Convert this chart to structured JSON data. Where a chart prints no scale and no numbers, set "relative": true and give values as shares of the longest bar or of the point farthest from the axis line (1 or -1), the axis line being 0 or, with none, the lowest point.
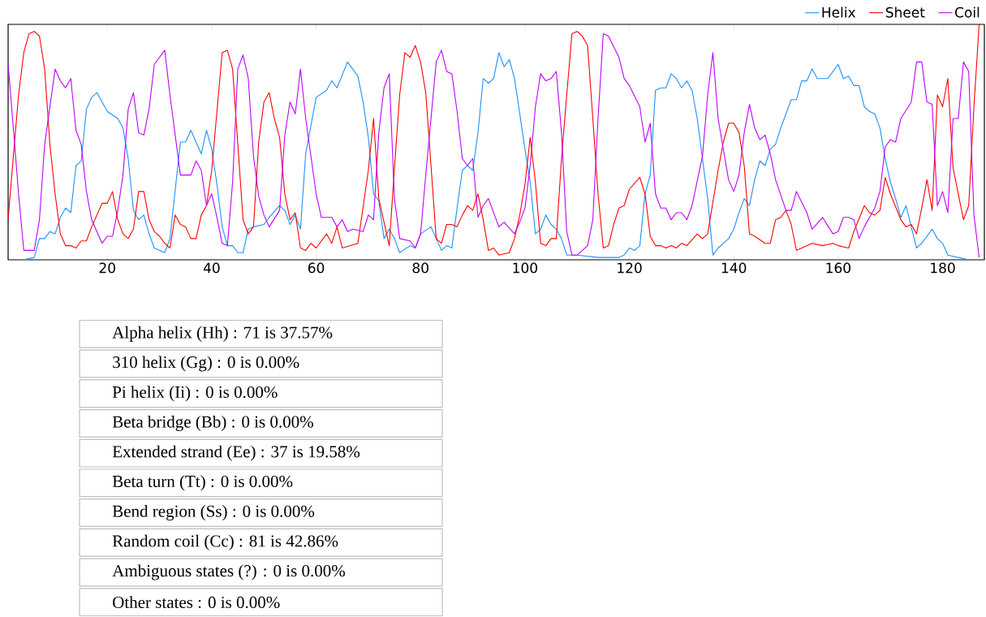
{
  "chart_data": {
    "type": "line",
    "relative": true,
    "xlim": [
      1,
      188
    ],
    "xticks": [
      20,
      40,
      60,
      80,
      100,
      120,
      140,
      160,
      180
    ],
    "legend": "top right",
    "series": [
      {
        "name": "Helix",
        "color": "#1e90ff",
        "x": [
          4,
          6,
          7,
          8,
          9,
          10,
          11,
          12,
          13,
          14,
          15,
          16,
          17,
          18,
          20,
          22,
          23,
          24,
          25,
          26,
          27,
          28,
          29,
          31,
          32,
          34,
          35,
          36,
          38,
          39,
          40,
          41,
          42,
          43,
          44,
          45,
          46,
          47,
          48,
          50,
          51,
          53,
          54,
          55,
          56,
          57,
          58,
          60,
          62,
          63,
          64,
          66,
          67,
          68,
          69,
          70,
          71,
          72,
          73,
          74,
          75,
          76,
          78,
          79,
          80,
          82,
          83,
          84,
          85,
          86,
          87,
          88,
          89,
          90,
          91,
          92,
          93,
          94,
          95,
          96,
          97,
          98,
          99,
          100,
          101,
          102,
          103,
          104,
          105,
          106,
          107,
          108,
          110,
          114,
          117,
          118,
          119,
          120,
          121,
          122,
          123,
          124,
          125,
          126,
          127,
          128,
          129,
          130,
          131,
          132,
          133,
          134,
          135,
          136,
          137,
          139,
          140,
          141,
          142,
          143,
          144,
          145,
          146,
          147,
          148,
          149,
          150,
          151,
          152,
          153,
          154,
          155,
          156,
          158,
          159,
          160,
          161,
          162,
          163,
          164,
          165,
          166,
          167,
          168,
          169,
          170,
          171,
          172,
          173,
          174,
          175,
          176,
          178,
          179,
          180,
          181,
          183,
          185
        ],
        "values": [
          0,
          0.01,
          0.09,
          0.09,
          0.12,
          0.11,
          0.18,
          0.22,
          0.2,
          0.4,
          0.42,
          0.64,
          0.69,
          0.71,
          0.63,
          0.6,
          0.56,
          0.43,
          0.21,
          0.17,
          0.19,
          0.11,
          0.05,
          0.03,
          0.09,
          0.5,
          0.5,
          0.55,
          0.45,
          0.55,
          0.47,
          0.32,
          0.14,
          0.06,
          0.06,
          0.03,
          0.03,
          0.13,
          0.14,
          0.15,
          0.18,
          0.23,
          0.21,
          0.15,
          0.19,
          0.13,
          0.45,
          0.69,
          0.72,
          0.76,
          0.73,
          0.84,
          0.81,
          0.78,
          0.67,
          0.52,
          0.28,
          0.25,
          0.09,
          0.13,
          0.09,
          0.03,
          0.06,
          0.05,
          0.11,
          0.14,
          0.09,
          0.04,
          0.06,
          0.05,
          0.22,
          0.38,
          0.4,
          0.38,
          0.54,
          0.77,
          0.75,
          0.77,
          0.88,
          0.82,
          0.85,
          0.77,
          0.62,
          0.47,
          0.33,
          0.11,
          0.13,
          0.19,
          0.15,
          0.13,
          0.09,
          0.02,
          0.02,
          0.01,
          0.01,
          0.01,
          0.02,
          0.05,
          0.04,
          0.06,
          0.28,
          0.36,
          0.72,
          0.73,
          0.73,
          0.79,
          0.77,
          0.73,
          0.76,
          0.72,
          0.6,
          0.43,
          0.26,
          0.02,
          0.05,
          0.09,
          0.13,
          0.2,
          0.26,
          0.23,
          0.34,
          0.42,
          0.4,
          0.47,
          0.49,
          0.56,
          0.62,
          0.68,
          0.68,
          0.76,
          0.76,
          0.81,
          0.77,
          0.77,
          0.8,
          0.83,
          0.77,
          0.78,
          0.74,
          0.74,
          0.65,
          0.63,
          0.62,
          0.56,
          0.43,
          0.33,
          0.26,
          0.18,
          0.23,
          0.14,
          0.05,
          0.07,
          0.13,
          0.09,
          0.07,
          0.02,
          0.01,
          0
        ]
      },
      {
        "name": "Sheet",
        "color": "#ff0000",
        "x": [
          1,
          2,
          3,
          4,
          5,
          6,
          7,
          8,
          9,
          10,
          11,
          12,
          13,
          14,
          15,
          16,
          17,
          19,
          20,
          21,
          22,
          23,
          24,
          25,
          26,
          27,
          28,
          29,
          30,
          31,
          32,
          33,
          34,
          35,
          36,
          37,
          38,
          39,
          40,
          42,
          43,
          44,
          45,
          46,
          47,
          48,
          49,
          50,
          51,
          52,
          53,
          54,
          55,
          56,
          57,
          58,
          59,
          60,
          62,
          63,
          64,
          65,
          68,
          70,
          71,
          72,
          74,
          75,
          76,
          77,
          78,
          79,
          80,
          81,
          82,
          83,
          84,
          85,
          86,
          87,
          88,
          89,
          90,
          91,
          92,
          93,
          94,
          95,
          97,
          98,
          99,
          100,
          101,
          102,
          103,
          104,
          105,
          106,
          107,
          108,
          109,
          110,
          111,
          112,
          113,
          114,
          115,
          116,
          117,
          118,
          119,
          120,
          122,
          123,
          124,
          125,
          126,
          127,
          128,
          129,
          130,
          131,
          133,
          134,
          135,
          137,
          138,
          139,
          140,
          141,
          142,
          143,
          144,
          146,
          147,
          148,
          149,
          150,
          151,
          152,
          153,
          155,
          157,
          159,
          160,
          162,
          163,
          165,
          166,
          167,
          168,
          169,
          170,
          172,
          173,
          174,
          175,
          176,
          177,
          178,
          179,
          180,
          181,
          182,
          184,
          185,
          186,
          187
        ],
        "values": [
          0.17,
          0.44,
          0.7,
          0.88,
          0.96,
          0.97,
          0.95,
          0.81,
          0.49,
          0.28,
          0.11,
          0.06,
          0.06,
          0.05,
          0.08,
          0.08,
          0.14,
          0.24,
          0.24,
          0.29,
          0.17,
          0.11,
          0.09,
          0.13,
          0.29,
          0.29,
          0.17,
          0.12,
          0.1,
          0.07,
          0.05,
          0.19,
          0.15,
          0.14,
          0.09,
          0.09,
          0.19,
          0.23,
          0.38,
          0.88,
          0.89,
          0.81,
          0.49,
          0.17,
          0.11,
          0.14,
          0.5,
          0.67,
          0.71,
          0.6,
          0.52,
          0.28,
          0.17,
          0.2,
          0.05,
          0.04,
          0.07,
          0.05,
          0.11,
          0.07,
          0.14,
          0.05,
          0.07,
          0.38,
          0.6,
          0.26,
          0.06,
          0.39,
          0.7,
          0.88,
          0.86,
          0.91,
          0.84,
          0.71,
          0.4,
          0.09,
          0.07,
          0.15,
          0.15,
          0.14,
          0.19,
          0.23,
          0.21,
          0.28,
          0.17,
          0.04,
          0.05,
          0.02,
          0.03,
          0.09,
          0.19,
          0.32,
          0.52,
          0.33,
          0.07,
          0.06,
          0.09,
          0.09,
          0.43,
          0.7,
          0.96,
          0.97,
          0.95,
          0.91,
          0.6,
          0.28,
          0.05,
          0.06,
          0.15,
          0.22,
          0.23,
          0.3,
          0.35,
          0.28,
          0.1,
          0.06,
          0.06,
          0.05,
          0.06,
          0.05,
          0.07,
          0.06,
          0.11,
          0.09,
          0.11,
          0.38,
          0.5,
          0.58,
          0.58,
          0.54,
          0.4,
          0.11,
          0.1,
          0.07,
          0.07,
          0.17,
          0.18,
          0.21,
          0.15,
          0.04,
          0.05,
          0.07,
          0.06,
          0.07,
          0.06,
          0.05,
          0.12,
          0.23,
          0.2,
          0.19,
          0.21,
          0.35,
          0.28,
          0.17,
          0.14,
          0.15,
          0.11,
          0.22,
          0.34,
          0.21,
          0.7,
          0.65,
          0.77,
          0.39,
          0.17,
          0.23,
          0.65,
          1.0
        ]
      },
      {
        "name": "Coil",
        "color": "#bf00ff",
        "x": [
          1,
          2,
          3,
          4,
          6,
          7,
          8,
          10,
          11,
          12,
          13,
          14,
          15,
          16,
          17,
          19,
          20,
          21,
          22,
          23,
          24,
          25,
          26,
          27,
          28,
          29,
          31,
          32,
          34,
          35,
          36,
          37,
          38,
          39,
          40,
          41,
          42,
          43,
          44,
          45,
          46,
          47,
          48,
          49,
          50,
          51,
          53,
          54,
          55,
          56,
          57,
          58,
          60,
          61,
          63,
          64,
          65,
          66,
          67,
          69,
          70,
          71,
          72,
          73,
          74,
          75,
          76,
          78,
          79,
          80,
          81,
          83,
          84,
          85,
          86,
          87,
          88,
          89,
          90,
          91,
          92,
          93,
          95,
          96,
          98,
          99,
          100,
          101,
          102,
          103,
          104,
          105,
          106,
          107,
          108,
          109,
          110,
          112,
          113,
          114,
          115,
          116,
          118,
          119,
          120,
          122,
          123,
          124,
          125,
          126,
          127,
          128,
          129,
          130,
          131,
          132,
          134,
          135,
          136,
          137,
          139,
          140,
          141,
          142,
          143,
          144,
          145,
          146,
          147,
          148,
          150,
          151,
          152,
          154,
          155,
          157,
          159,
          160,
          161,
          162,
          163,
          164,
          165,
          167,
          168,
          169,
          170,
          171,
          172,
          174,
          175,
          176,
          177,
          178,
          179,
          180,
          181,
          182,
          183,
          184,
          185,
          186,
          187
        ],
        "values": [
          0.83,
          0.56,
          0.28,
          0.04,
          0.04,
          0.17,
          0.49,
          0.81,
          0.76,
          0.73,
          0.77,
          0.55,
          0.49,
          0.29,
          0.17,
          0.07,
          0.1,
          0.1,
          0.21,
          0.36,
          0.64,
          0.71,
          0.54,
          0.53,
          0.64,
          0.83,
          0.89,
          0.7,
          0.36,
          0.36,
          0.36,
          0.42,
          0.38,
          0.23,
          0.28,
          0.18,
          0.07,
          0.06,
          0.33,
          0.81,
          0.87,
          0.77,
          0.44,
          0.27,
          0.19,
          0.14,
          0.21,
          0.53,
          0.67,
          0.62,
          0.81,
          0.6,
          0.28,
          0.18,
          0.18,
          0.14,
          0.17,
          0.12,
          0.13,
          0.12,
          0.19,
          0.17,
          0.54,
          0.73,
          0.79,
          0.26,
          0.09,
          0.08,
          0.05,
          0.11,
          0.36,
          0.84,
          0.89,
          0.8,
          0.79,
          0.63,
          0.43,
          0.4,
          0.43,
          0.18,
          0.23,
          0.26,
          0.14,
          0.16,
          0.11,
          0.16,
          0.22,
          0.4,
          0.65,
          0.79,
          0.76,
          0.77,
          0.8,
          0.54,
          0.12,
          0.02,
          0.02,
          0.06,
          0.17,
          0.6,
          0.96,
          0.95,
          0.86,
          0.77,
          0.74,
          0.65,
          0.5,
          0.58,
          0.28,
          0.22,
          0.22,
          0.17,
          0.2,
          0.2,
          0.17,
          0.23,
          0.44,
          0.7,
          0.88,
          0.6,
          0.34,
          0.29,
          0.36,
          0.54,
          0.66,
          0.56,
          0.51,
          0.53,
          0.45,
          0.34,
          0.21,
          0.21,
          0.29,
          0.2,
          0.13,
          0.18,
          0.11,
          0.12,
          0.18,
          0.18,
          0.17,
          0.09,
          0.14,
          0.22,
          0.29,
          0.48,
          0.51,
          0.5,
          0.6,
          0.67,
          0.84,
          0.84,
          0.67,
          0.66,
          0.23,
          0.29,
          0.2,
          0.6,
          0.6,
          0.84,
          0.8,
          0.19,
          0.01
        ]
      }
    ],
    "annotations": [
      "Alpha helix (Hh) : 71 is 37.57%",
      "310 helix (Gg) : 0 is 0.00%",
      "Pi helix (Ii) : 0 is 0.00%",
      "Beta bridge (Bb) : 0 is 0.00%",
      "Extended strand (Ee) : 37 is 19.58%",
      "Beta turn (Tt) : 0 is 0.00%",
      "Bend region (Ss) : 0 is 0.00%",
      "Random coil (Cc) : 81 is 42.86%",
      "Ambiguous states (?) : 0 is 0.00%",
      "Other states : 0 is 0.00%"
    ]
  }
}
